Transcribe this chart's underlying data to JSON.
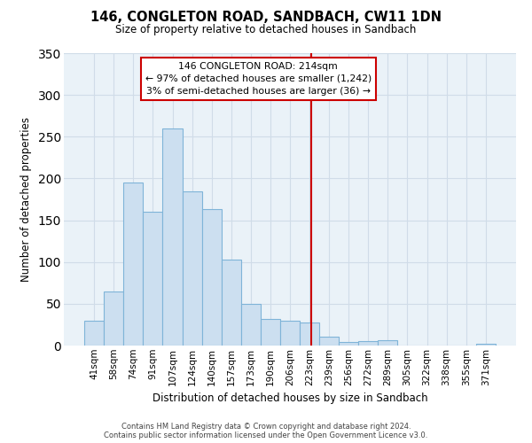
{
  "title": "146, CONGLETON ROAD, SANDBACH, CW11 1DN",
  "subtitle": "Size of property relative to detached houses in Sandbach",
  "xlabel": "Distribution of detached houses by size in Sandbach",
  "ylabel": "Number of detached properties",
  "bar_labels": [
    "41sqm",
    "58sqm",
    "74sqm",
    "91sqm",
    "107sqm",
    "124sqm",
    "140sqm",
    "157sqm",
    "173sqm",
    "190sqm",
    "206sqm",
    "223sqm",
    "239sqm",
    "256sqm",
    "272sqm",
    "289sqm",
    "305sqm",
    "322sqm",
    "338sqm",
    "355sqm",
    "371sqm"
  ],
  "bar_values": [
    30,
    65,
    195,
    160,
    260,
    185,
    163,
    103,
    50,
    32,
    30,
    28,
    11,
    4,
    5,
    6,
    0,
    0,
    0,
    0,
    2
  ],
  "bar_color": "#ccdff0",
  "bar_edge_color": "#7fb4d8",
  "reference_line_x": 11.07,
  "annotation_title": "146 CONGLETON ROAD: 214sqm",
  "annotation_line1": "← 97% of detached houses are smaller (1,242)",
  "annotation_line2": "3% of semi-detached houses are larger (36) →",
  "annotation_box_facecolor": "#ffffff",
  "annotation_box_edgecolor": "#cc0000",
  "grid_color": "#d0dce8",
  "bg_color": "#eaf2f8",
  "ylim": [
    0,
    350
  ],
  "yticks": [
    0,
    50,
    100,
    150,
    200,
    250,
    300,
    350
  ],
  "footer_line1": "Contains HM Land Registry data © Crown copyright and database right 2024.",
  "footer_line2": "Contains public sector information licensed under the Open Government Licence v3.0."
}
